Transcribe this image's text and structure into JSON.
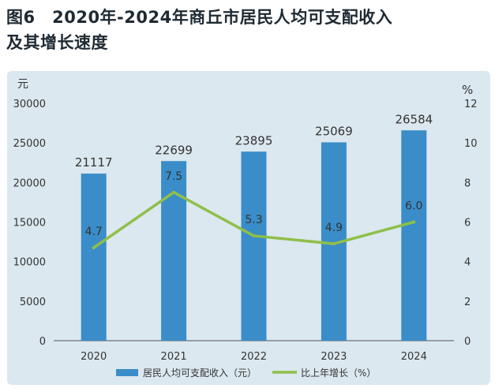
{
  "title": {
    "line1": "图6　2020年-2024年商丘市居民人均可支配收入",
    "line2": "及其增长速度"
  },
  "chart_data": {
    "type": "bar",
    "categories": [
      "2020",
      "2021",
      "2022",
      "2023",
      "2024"
    ],
    "series": [
      {
        "name": "居民人均可支配收入（元）",
        "type": "bar",
        "axis": "left",
        "values": [
          21117,
          22699,
          23895,
          25069,
          26584
        ],
        "color": "#3a8dc8"
      },
      {
        "name": "比上年增长（%）",
        "type": "line",
        "axis": "right",
        "values": [
          4.7,
          7.5,
          5.3,
          4.9,
          6.0
        ],
        "color": "#8fbf4a"
      }
    ],
    "bar_labels": [
      "21117",
      "22699",
      "23895",
      "25069",
      "26584"
    ],
    "line_labels": [
      "4.7",
      "7.5",
      "5.3",
      "4.9",
      "6.0"
    ],
    "y_left": {
      "unit": "元",
      "min": 0,
      "max": 30000,
      "ticks": [
        0,
        5000,
        10000,
        15000,
        20000,
        25000,
        30000
      ]
    },
    "y_right": {
      "unit": "%",
      "min": 0,
      "max": 12,
      "ticks": [
        0,
        2,
        4,
        6,
        8,
        10,
        12
      ]
    },
    "grid": false,
    "legend_position": "bottom"
  }
}
